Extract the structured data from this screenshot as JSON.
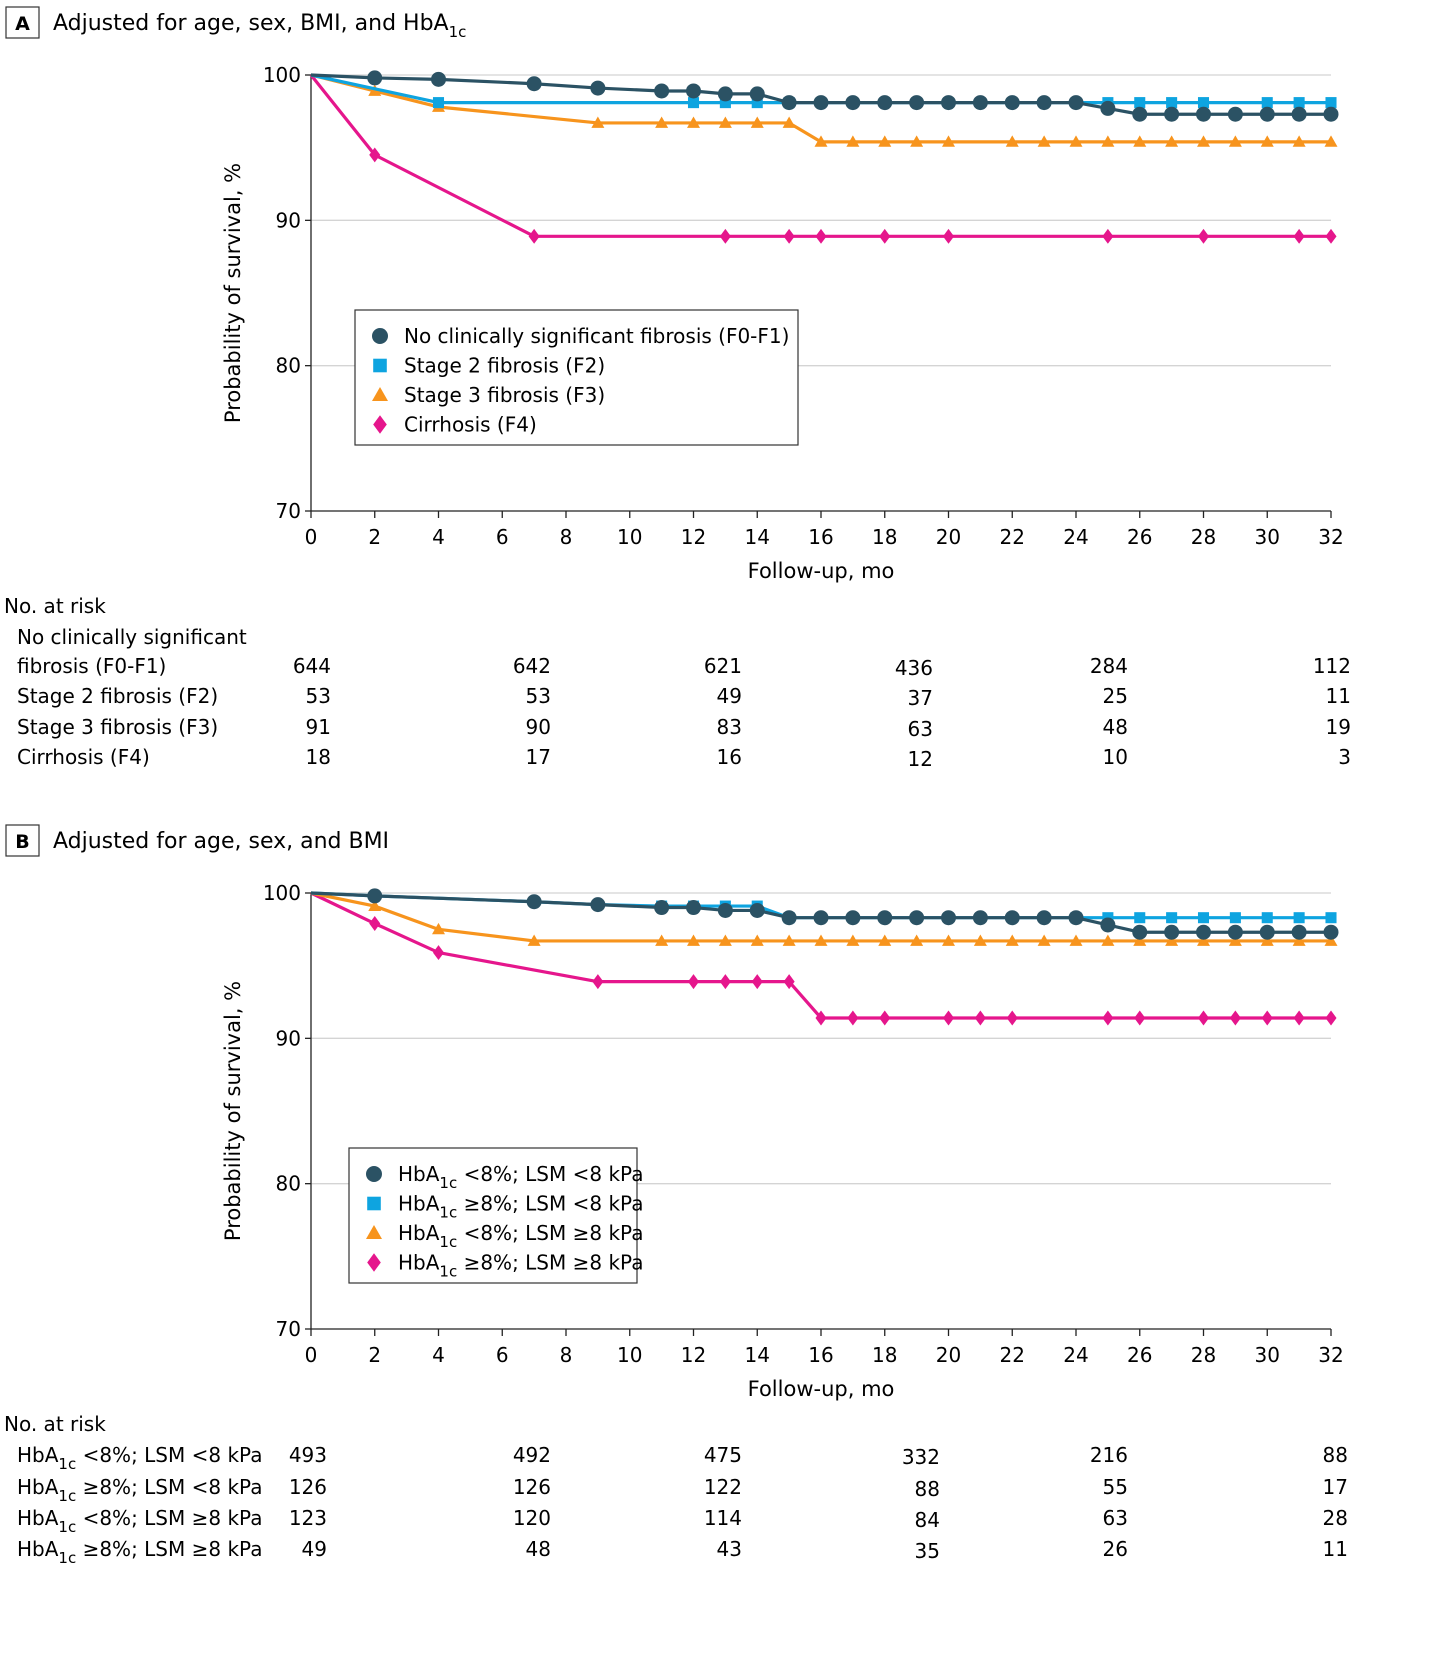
{
  "colors": {
    "series1": "#2b5264",
    "series2": "#0ea4e0",
    "series3": "#f7941d",
    "series4": "#e5168c"
  },
  "chart_data": [
    {
      "type": "line",
      "panel_letter": "A",
      "title": "Adjusted for age, sex, BMI, and HbA",
      "title_sub": "1c",
      "xlabel": "Follow-up, mo",
      "ylabel": "Probability of survival, %",
      "xlim": [
        0,
        32
      ],
      "ylim": [
        70,
        100
      ],
      "x_ticks": [
        0,
        2,
        4,
        6,
        8,
        10,
        12,
        14,
        16,
        18,
        20,
        22,
        24,
        26,
        28,
        30,
        32
      ],
      "y_ticks": [
        70,
        80,
        90,
        100
      ],
      "grid": "horizontal",
      "legend_position": "center-left",
      "series": [
        {
          "name": "No clinically significant fibrosis (F0-F1)",
          "name_sub": "",
          "name_tail": "",
          "marker": "circle",
          "color_key": "series1",
          "points": [
            [
              0,
              100
            ],
            [
              2,
              99.8
            ],
            [
              4,
              99.7
            ],
            [
              7,
              99.4
            ],
            [
              9,
              99.1
            ],
            [
              11,
              98.9
            ],
            [
              12,
              98.9
            ],
            [
              13,
              98.7
            ],
            [
              14,
              98.7
            ],
            [
              15,
              98.1
            ],
            [
              16,
              98.1
            ],
            [
              17,
              98.1
            ],
            [
              18,
              98.1
            ],
            [
              19,
              98.1
            ],
            [
              20,
              98.1
            ],
            [
              21,
              98.1
            ],
            [
              22,
              98.1
            ],
            [
              23,
              98.1
            ],
            [
              24,
              98.1
            ],
            [
              25,
              97.7
            ],
            [
              26,
              97.3
            ],
            [
              27,
              97.3
            ],
            [
              28,
              97.3
            ],
            [
              29,
              97.3
            ],
            [
              30,
              97.3
            ],
            [
              31,
              97.3
            ],
            [
              32,
              97.3
            ]
          ],
          "marker_from": 1
        },
        {
          "name": "Stage 2 fibrosis (F2)",
          "name_sub": "",
          "name_tail": "",
          "marker": "square",
          "color_key": "series2",
          "points": [
            [
              0,
              100
            ],
            [
              4,
              98.1
            ],
            [
              12,
              98.1
            ],
            [
              13,
              98.1
            ],
            [
              14,
              98.1
            ],
            [
              15,
              98.1
            ],
            [
              25,
              98.1
            ],
            [
              26,
              98.1
            ],
            [
              27,
              98.1
            ],
            [
              28,
              98.1
            ],
            [
              30,
              98.1
            ],
            [
              31,
              98.1
            ],
            [
              32,
              98.1
            ]
          ],
          "marker_from": 1
        },
        {
          "name": "Stage 3 fibrosis (F3)",
          "name_sub": "",
          "name_tail": "",
          "marker": "triangle",
          "color_key": "series3",
          "points": [
            [
              0,
              100
            ],
            [
              2,
              98.9
            ],
            [
              4,
              97.8
            ],
            [
              9,
              96.7
            ],
            [
              11,
              96.7
            ],
            [
              12,
              96.7
            ],
            [
              13,
              96.7
            ],
            [
              14,
              96.7
            ],
            [
              15,
              96.7
            ],
            [
              16,
              95.4
            ],
            [
              17,
              95.4
            ],
            [
              18,
              95.4
            ],
            [
              19,
              95.4
            ],
            [
              20,
              95.4
            ],
            [
              22,
              95.4
            ],
            [
              23,
              95.4
            ],
            [
              24,
              95.4
            ],
            [
              25,
              95.4
            ],
            [
              26,
              95.4
            ],
            [
              27,
              95.4
            ],
            [
              28,
              95.4
            ],
            [
              29,
              95.4
            ],
            [
              30,
              95.4
            ],
            [
              31,
              95.4
            ],
            [
              32,
              95.4
            ]
          ],
          "marker_from": 1
        },
        {
          "name": "Cirrhosis (F4)",
          "name_sub": "",
          "name_tail": "",
          "marker": "diamond",
          "color_key": "series4",
          "points": [
            [
              0,
              100
            ],
            [
              2,
              94.5
            ],
            [
              7,
              88.9
            ],
            [
              13,
              88.9
            ],
            [
              15,
              88.9
            ],
            [
              16,
              88.9
            ],
            [
              18,
              88.9
            ],
            [
              20,
              88.9
            ],
            [
              25,
              88.9
            ],
            [
              28,
              88.9
            ],
            [
              31,
              88.9
            ],
            [
              32,
              88.9
            ]
          ],
          "marker_from": 1
        }
      ],
      "risk_table": {
        "heading": "No. at risk",
        "time_points": [
          0,
          7,
          13,
          19,
          25,
          32
        ],
        "rows": [
          {
            "label_line1": "No clinically significant",
            "label": "fibrosis (F0-F1)",
            "label_sub": "",
            "label_tail": "",
            "values": [
              "644",
              "642",
              "621",
              "436",
              "284",
              "112"
            ]
          },
          {
            "label_line1": "",
            "label": "Stage 2 fibrosis (F2)",
            "label_sub": "",
            "label_tail": "",
            "values": [
              "53",
              "53",
              "49",
              "37",
              "25",
              "11"
            ]
          },
          {
            "label_line1": "",
            "label": "Stage 3 fibrosis (F3)",
            "label_sub": "",
            "label_tail": "",
            "values": [
              "91",
              "90",
              "83",
              "63",
              "48",
              "19"
            ]
          },
          {
            "label_line1": "",
            "label": "Cirrhosis (F4)",
            "label_sub": "",
            "label_tail": "",
            "values": [
              "18",
              "17",
              "16",
              "12",
              "10",
              "3"
            ]
          }
        ]
      }
    },
    {
      "type": "line",
      "panel_letter": "B",
      "title": "Adjusted for age, sex, and BMI",
      "title_sub": "",
      "xlabel": "Follow-up, mo",
      "ylabel": "Probability of survival, %",
      "xlim": [
        0,
        32
      ],
      "ylim": [
        70,
        100
      ],
      "x_ticks": [
        0,
        2,
        4,
        6,
        8,
        10,
        12,
        14,
        16,
        18,
        20,
        22,
        24,
        26,
        28,
        30,
        32
      ],
      "y_ticks": [
        70,
        80,
        90,
        100
      ],
      "grid": "horizontal",
      "legend_position": "center-left",
      "series": [
        {
          "name": "HbA",
          "name_sub": "1c",
          "name_tail": " <8%; LSM <8 kPa",
          "marker": "circle",
          "color_key": "series1",
          "points": [
            [
              0,
              100
            ],
            [
              2,
              99.8
            ],
            [
              7,
              99.4
            ],
            [
              9,
              99.2
            ],
            [
              11,
              99.0
            ],
            [
              12,
              99.0
            ],
            [
              13,
              98.8
            ],
            [
              14,
              98.8
            ],
            [
              15,
              98.3
            ],
            [
              16,
              98.3
            ],
            [
              17,
              98.3
            ],
            [
              18,
              98.3
            ],
            [
              19,
              98.3
            ],
            [
              20,
              98.3
            ],
            [
              21,
              98.3
            ],
            [
              22,
              98.3
            ],
            [
              23,
              98.3
            ],
            [
              24,
              98.3
            ],
            [
              25,
              97.8
            ],
            [
              26,
              97.3
            ],
            [
              27,
              97.3
            ],
            [
              28,
              97.3
            ],
            [
              29,
              97.3
            ],
            [
              30,
              97.3
            ],
            [
              31,
              97.3
            ],
            [
              32,
              97.3
            ]
          ],
          "marker_from": 1
        },
        {
          "name": "HbA",
          "name_sub": "1c",
          "name_tail": " ≥8%; LSM <8 kPa",
          "marker": "square",
          "color_key": "series2",
          "points": [
            [
              0,
              100
            ],
            [
              2,
              99.8
            ],
            [
              7,
              99.4
            ],
            [
              9,
              99.2
            ],
            [
              11,
              99.1
            ],
            [
              12,
              99.1
            ],
            [
              13,
              99.1
            ],
            [
              14,
              99.1
            ],
            [
              15,
              98.3
            ],
            [
              24,
              98.3
            ],
            [
              25,
              98.3
            ],
            [
              26,
              98.3
            ],
            [
              27,
              98.3
            ],
            [
              28,
              98.3
            ],
            [
              29,
              98.3
            ],
            [
              30,
              98.3
            ],
            [
              31,
              98.3
            ],
            [
              32,
              98.3
            ]
          ],
          "marker_from": 4
        },
        {
          "name": "HbA",
          "name_sub": "1c",
          "name_tail": " <8%; LSM ≥8 kPa",
          "marker": "triangle",
          "color_key": "series3",
          "points": [
            [
              0,
              100
            ],
            [
              2,
              99.1
            ],
            [
              4,
              97.5
            ],
            [
              7,
              96.7
            ],
            [
              11,
              96.7
            ],
            [
              12,
              96.7
            ],
            [
              13,
              96.7
            ],
            [
              14,
              96.7
            ],
            [
              15,
              96.7
            ],
            [
              16,
              96.7
            ],
            [
              17,
              96.7
            ],
            [
              18,
              96.7
            ],
            [
              19,
              96.7
            ],
            [
              20,
              96.7
            ],
            [
              21,
              96.7
            ],
            [
              22,
              96.7
            ],
            [
              23,
              96.7
            ],
            [
              24,
              96.7
            ],
            [
              25,
              96.7
            ],
            [
              26,
              96.7
            ],
            [
              27,
              96.7
            ],
            [
              28,
              96.7
            ],
            [
              29,
              96.7
            ],
            [
              30,
              96.7
            ],
            [
              31,
              96.7
            ],
            [
              32,
              96.7
            ]
          ],
          "marker_from": 1
        },
        {
          "name": "HbA",
          "name_sub": "1c",
          "name_tail": " ≥8%; LSM ≥8 kPa",
          "marker": "diamond",
          "color_key": "series4",
          "points": [
            [
              0,
              100
            ],
            [
              2,
              97.9
            ],
            [
              4,
              95.9
            ],
            [
              9,
              93.9
            ],
            [
              12,
              93.9
            ],
            [
              13,
              93.9
            ],
            [
              14,
              93.9
            ],
            [
              15,
              93.9
            ],
            [
              16,
              91.4
            ],
            [
              17,
              91.4
            ],
            [
              18,
              91.4
            ],
            [
              20,
              91.4
            ],
            [
              21,
              91.4
            ],
            [
              22,
              91.4
            ],
            [
              25,
              91.4
            ],
            [
              26,
              91.4
            ],
            [
              28,
              91.4
            ],
            [
              29,
              91.4
            ],
            [
              30,
              91.4
            ],
            [
              31,
              91.4
            ],
            [
              32,
              91.4
            ]
          ],
          "marker_from": 1
        }
      ],
      "risk_table": {
        "heading": "No. at risk",
        "time_points": [
          0,
          7,
          13,
          19,
          25,
          32
        ],
        "rows": [
          {
            "label_line1": "",
            "label": "HbA",
            "label_sub": "1c",
            "label_tail": " <8%; LSM <8 kPa",
            "values": [
              "493",
              "492",
              "475",
              "332",
              "216",
              "88"
            ]
          },
          {
            "label_line1": "",
            "label": "HbA",
            "label_sub": "1c",
            "label_tail": " ≥8%; LSM <8 kPa",
            "values": [
              "126",
              "126",
              "122",
              "88",
              "55",
              "17"
            ]
          },
          {
            "label_line1": "",
            "label": "HbA",
            "label_sub": "1c",
            "label_tail": " <8%; LSM ≥8 kPa",
            "values": [
              "123",
              "120",
              "114",
              "84",
              "63",
              "28"
            ]
          },
          {
            "label_line1": "",
            "label": "HbA",
            "label_sub": "1c",
            "label_tail": " ≥8%; LSM ≥8 kPa",
            "values": [
              "49",
              "48",
              "43",
              "35",
              "26",
              "11"
            ]
          }
        ]
      }
    }
  ]
}
